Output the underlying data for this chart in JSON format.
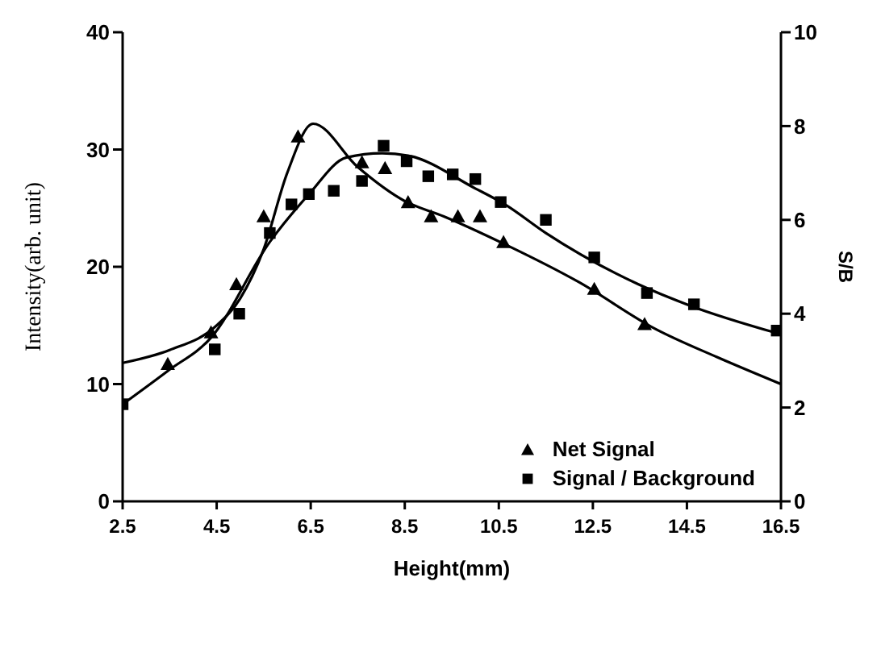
{
  "chart_data": {
    "type": "scatter",
    "xlabel": "Height(mm)",
    "ylabel": "Intensity(arb. unit)",
    "y2label": "S/B",
    "xlim": [
      2.5,
      16.5
    ],
    "xticks": [
      2.5,
      4.5,
      6.5,
      8.5,
      10.5,
      12.5,
      14.5,
      16.5
    ],
    "ylim": [
      0,
      40
    ],
    "yticks": [
      0,
      10,
      20,
      30,
      40
    ],
    "y2lim": [
      0,
      10
    ],
    "y2ticks": [
      0,
      2,
      4,
      6,
      8,
      10
    ],
    "legend": "bottom right",
    "grid": false,
    "series": [
      {
        "name": "Net Signal",
        "marker": "triangle",
        "color": "#000000",
        "x": [
          3.46,
          4.38,
          4.92,
          5.5,
          6.23,
          7.59,
          8.08,
          8.57,
          9.06,
          9.63,
          10.1,
          10.6,
          12.53,
          13.6
        ],
        "values": [
          11.7,
          14.4,
          18.5,
          24.3,
          31.1,
          28.9,
          28.4,
          25.5,
          24.3,
          24.3,
          24.3,
          22.1,
          18.1,
          15.1
        ]
      },
      {
        "name": "Signal / Background",
        "marker": "square",
        "axis": "y2",
        "color": "#000000",
        "x": [
          2.5,
          4.46,
          4.98,
          5.63,
          6.09,
          6.46,
          6.99,
          7.59,
          8.05,
          8.54,
          9.0,
          9.52,
          10.0,
          10.54,
          11.5,
          12.53,
          13.65,
          14.65,
          16.41
        ],
        "values": [
          2.07,
          3.24,
          4.0,
          5.72,
          6.33,
          6.55,
          6.62,
          6.83,
          7.58,
          7.25,
          6.93,
          6.97,
          6.87,
          6.38,
          6.0,
          5.2,
          4.44,
          4.2,
          3.64
        ]
      },
      {
        "type": "line",
        "marker": "none",
        "color": "#000000",
        "x": [
          2.5,
          3.5,
          4.5,
          5.0,
          5.5,
          6.0,
          6.55,
          7.5,
          8.5,
          9.33,
          10.64,
          12.2,
          13.83,
          15.14,
          16.5
        ],
        "values": [
          11.8,
          12.9,
          15.0,
          17.3,
          21.5,
          28.0,
          32.2,
          28.5,
          25.6,
          24.3,
          21.9,
          18.7,
          14.7,
          12.3,
          10.0
        ]
      },
      {
        "type": "line",
        "marker": "none",
        "axis": "y2",
        "color": "#000000",
        "x": [
          2.5,
          3.46,
          4.38,
          5.63,
          6.44,
          7.26,
          8.02,
          8.57,
          10.0,
          10.63,
          11.5,
          13.46,
          14.6,
          16.4
        ],
        "values": [
          2.07,
          2.78,
          3.49,
          5.53,
          6.52,
          7.33,
          7.42,
          7.37,
          6.67,
          6.33,
          5.72,
          4.63,
          4.16,
          3.59
        ]
      }
    ]
  }
}
